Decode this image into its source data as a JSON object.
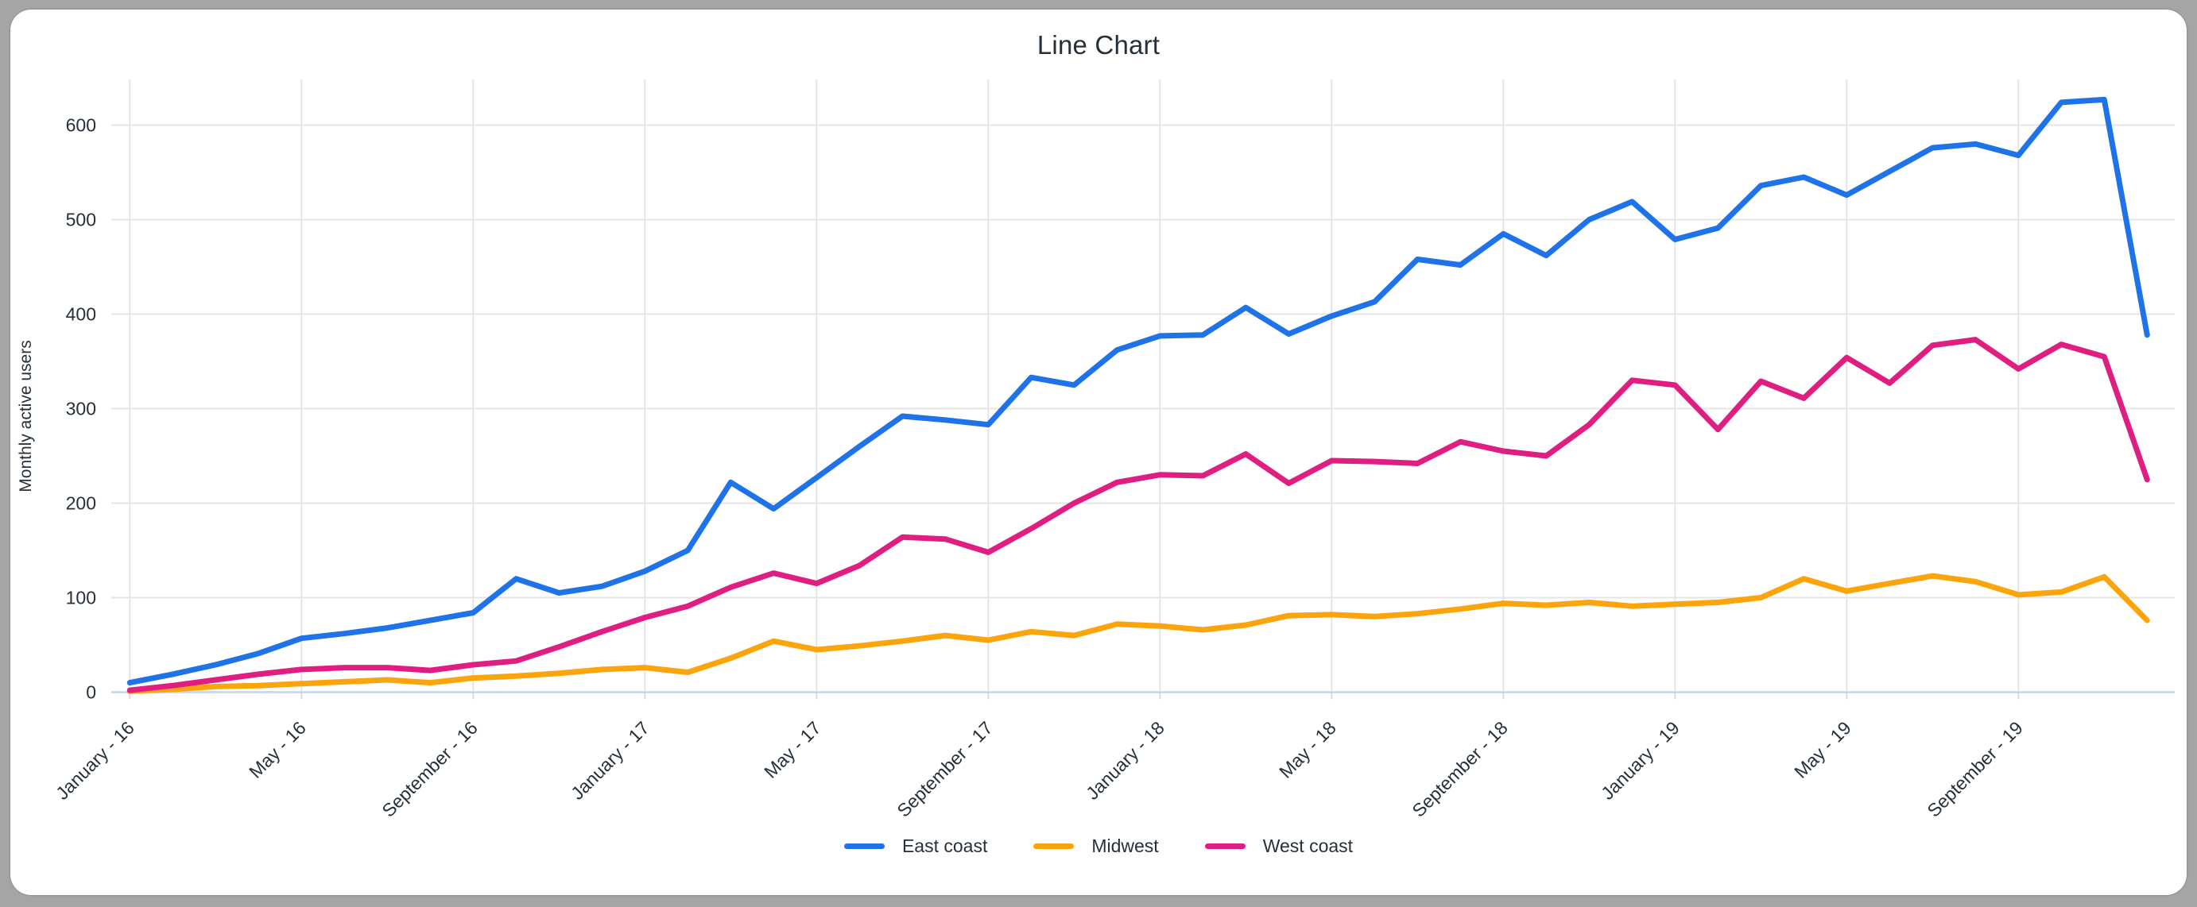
{
  "title": "Line Chart",
  "legend": {
    "position": "bottom-center"
  },
  "chart_data": {
    "type": "line",
    "title": "Line Chart",
    "xlabel": "",
    "ylabel": "Monthly active users",
    "ylim": [
      0,
      650
    ],
    "grid": true,
    "y_ticks": [
      0,
      100,
      200,
      300,
      400,
      500,
      600
    ],
    "x_ticks": [
      {
        "label": "January - 16",
        "month_index": 0
      },
      {
        "label": "May - 16",
        "month_index": 4
      },
      {
        "label": "September - 16",
        "month_index": 8
      },
      {
        "label": "January - 17",
        "month_index": 12
      },
      {
        "label": "May - 17",
        "month_index": 16
      },
      {
        "label": "September - 17",
        "month_index": 20
      },
      {
        "label": "January - 18",
        "month_index": 24
      },
      {
        "label": "May - 18",
        "month_index": 28
      },
      {
        "label": "September - 18",
        "month_index": 32
      },
      {
        "label": "January - 19",
        "month_index": 36
      },
      {
        "label": "May - 19",
        "month_index": 40
      },
      {
        "label": "September - 19",
        "month_index": 44
      }
    ],
    "months_total": 48,
    "series": [
      {
        "name": "East coast",
        "color": "#1F73E8",
        "values": [
          10,
          19,
          29,
          41,
          57,
          62,
          68,
          76,
          84,
          120,
          105,
          112,
          128,
          150,
          222,
          194,
          227,
          260,
          292,
          288,
          283,
          333,
          325,
          362,
          377,
          378,
          407,
          379,
          398,
          413,
          458,
          452,
          485,
          462,
          500,
          519,
          479,
          491,
          536,
          545,
          526,
          551,
          576,
          580,
          568,
          624,
          627,
          378
        ]
      },
      {
        "name": "Midwest",
        "color": "#FBA40C",
        "values": [
          1,
          3,
          6,
          7,
          9,
          11,
          13,
          10,
          15,
          17,
          20,
          24,
          26,
          21,
          36,
          54,
          45,
          49,
          54,
          60,
          55,
          64,
          60,
          72,
          70,
          66,
          71,
          81,
          82,
          80,
          83,
          88,
          94,
          92,
          95,
          91,
          93,
          95,
          100,
          120,
          107,
          115,
          123,
          117,
          103,
          106,
          122,
          76
        ]
      },
      {
        "name": "West coast",
        "color": "#E01E82",
        "values": [
          2,
          7,
          13,
          19,
          24,
          26,
          26,
          23,
          29,
          33,
          48,
          64,
          79,
          91,
          111,
          126,
          115,
          134,
          164,
          162,
          148,
          173,
          200,
          222,
          230,
          229,
          252,
          221,
          245,
          244,
          242,
          265,
          255,
          250,
          283,
          330,
          325,
          278,
          329,
          311,
          354,
          327,
          367,
          373,
          342,
          368,
          355,
          225
        ]
      }
    ],
    "style": {
      "gridline_color": "#E5E5E5",
      "baseline_color": "#C6D3EA",
      "axis_text_color": "#25303a",
      "background_color": "#ffffff",
      "frame_color": "#a5a5a5"
    }
  }
}
